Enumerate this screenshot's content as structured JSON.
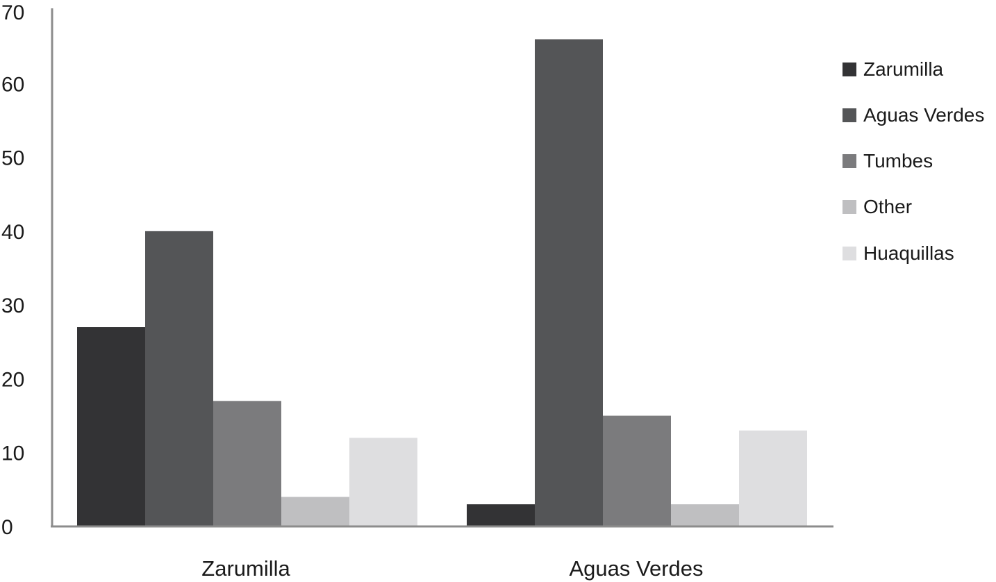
{
  "chart_data": {
    "type": "bar",
    "title": "",
    "xlabel": "",
    "ylabel": "",
    "categories": [
      "Zarumilla",
      "Aguas Verdes"
    ],
    "series": [
      {
        "name": "Zarumilla",
        "values": [
          27,
          3
        ],
        "color": "#333335"
      },
      {
        "name": "Aguas Verdes",
        "values": [
          40,
          66
        ],
        "color": "#545557"
      },
      {
        "name": "Tumbes",
        "values": [
          17,
          15
        ],
        "color": "#7b7b7d"
      },
      {
        "name": "Other",
        "values": [
          4,
          3
        ],
        "color": "#bfbfc1"
      },
      {
        "name": "Huaquillas",
        "values": [
          12,
          13
        ],
        "color": "#dedee0"
      }
    ],
    "ylim": [
      0,
      70
    ],
    "yticks": [
      0,
      10,
      20,
      30,
      40,
      50,
      60,
      70
    ],
    "grid": false,
    "legend_position": "right"
  }
}
